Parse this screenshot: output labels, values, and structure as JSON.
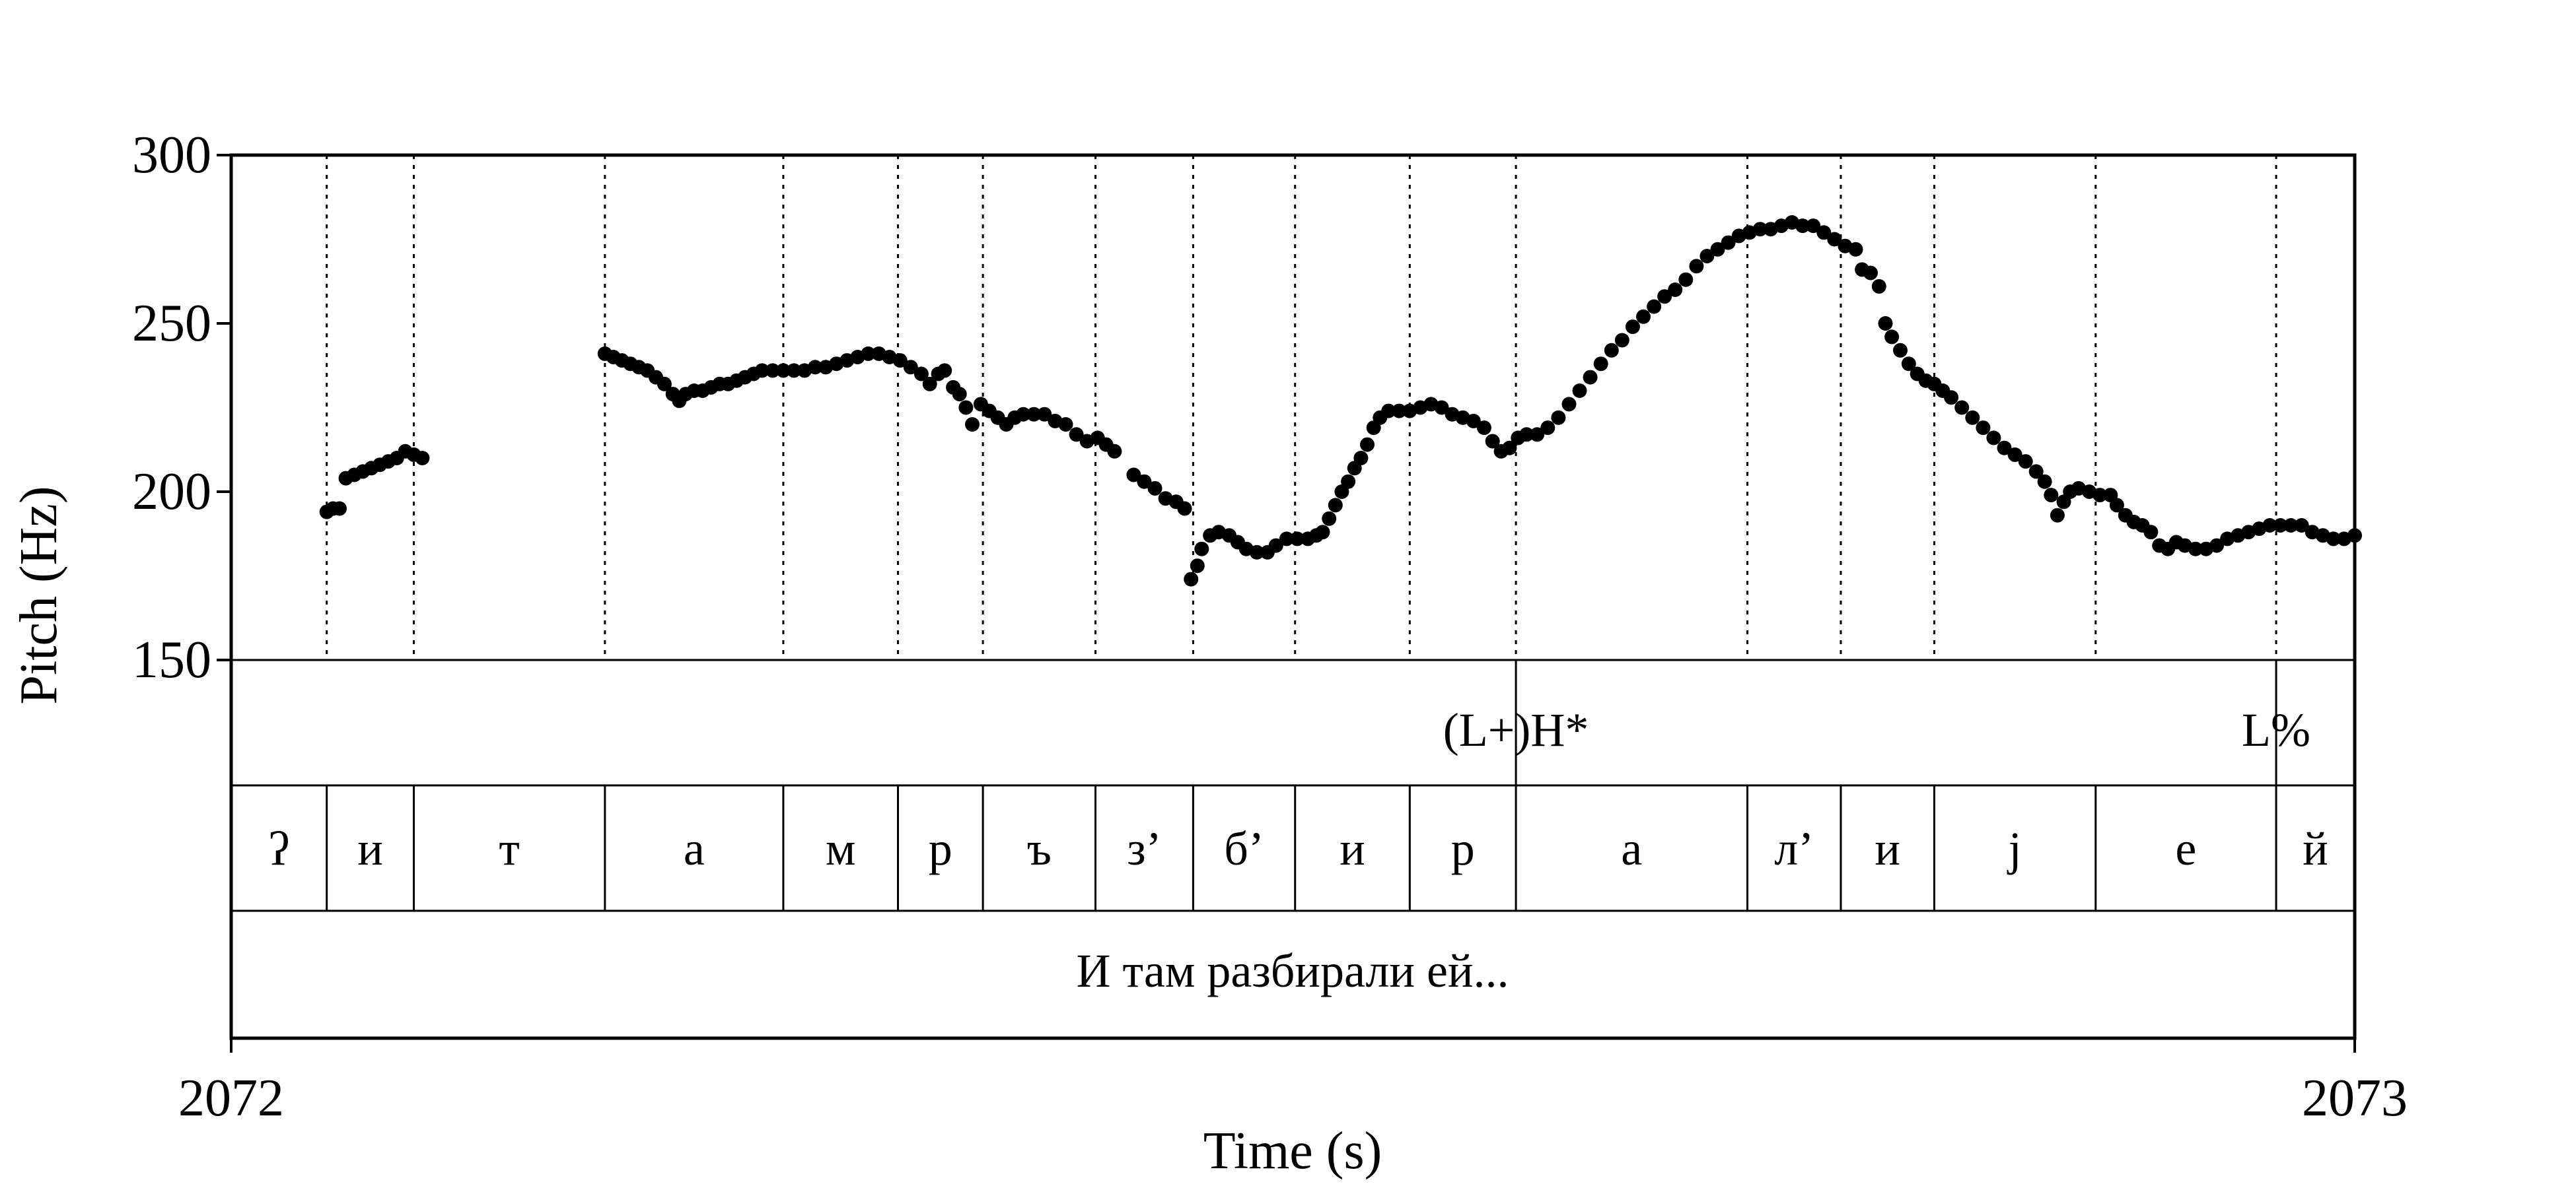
{
  "chart_data": {
    "type": "scatter",
    "title": "",
    "xlabel": "Time (s)",
    "ylabel": "Pitch (Hz)",
    "xlim": [
      2072,
      2073
    ],
    "ylim": [
      150,
      300
    ],
    "x_ticks": [
      "2072",
      "2073"
    ],
    "y_ticks": [
      "150",
      "200",
      "250",
      "300"
    ],
    "tone_tier": [
      {
        "label": "(L+)H*",
        "time": 2072.605
      },
      {
        "label": "L%",
        "time": 2072.963
      }
    ],
    "segment_tier": {
      "boundaries": [
        2072.0,
        2072.045,
        2072.086,
        2072.176,
        2072.26,
        2072.314,
        2072.354,
        2072.407,
        2072.453,
        2072.501,
        2072.555,
        2072.605,
        2072.714,
        2072.758,
        2072.802,
        2072.878,
        2072.963,
        2073.0
      ],
      "labels": [
        "ʔ",
        "и",
        "т",
        "а",
        "м",
        "р",
        "ъ",
        "з’",
        "б’",
        "и",
        "р",
        "а",
        "л’",
        "и",
        "j",
        "е",
        "й"
      ]
    },
    "phrase_tier": {
      "label": "И там разбирали ей..."
    },
    "pitch_segments": [
      [
        [
          2072.045,
          194
        ],
        [
          2072.048,
          195
        ],
        [
          2072.051,
          195
        ],
        [
          2072.054,
          204
        ],
        [
          2072.058,
          205
        ],
        [
          2072.062,
          206
        ],
        [
          2072.066,
          207
        ],
        [
          2072.07,
          208
        ],
        [
          2072.074,
          209
        ],
        [
          2072.078,
          210
        ],
        [
          2072.082,
          212
        ],
        [
          2072.086,
          211
        ],
        [
          2072.09,
          210
        ]
      ],
      [
        [
          2072.176,
          241
        ],
        [
          2072.18,
          240
        ],
        [
          2072.184,
          239
        ],
        [
          2072.188,
          238
        ],
        [
          2072.192,
          237
        ],
        [
          2072.196,
          236
        ],
        [
          2072.2,
          234
        ],
        [
          2072.204,
          232
        ],
        [
          2072.208,
          229
        ],
        [
          2072.211,
          227
        ],
        [
          2072.214,
          229
        ],
        [
          2072.218,
          230
        ],
        [
          2072.222,
          230
        ],
        [
          2072.226,
          231
        ],
        [
          2072.23,
          232
        ],
        [
          2072.234,
          232
        ],
        [
          2072.238,
          233
        ],
        [
          2072.242,
          234
        ],
        [
          2072.246,
          235
        ],
        [
          2072.25,
          236
        ],
        [
          2072.255,
          236
        ],
        [
          2072.26,
          236
        ],
        [
          2072.265,
          236
        ],
        [
          2072.27,
          236
        ],
        [
          2072.275,
          237
        ],
        [
          2072.28,
          237
        ],
        [
          2072.285,
          238
        ],
        [
          2072.29,
          239
        ],
        [
          2072.295,
          240
        ],
        [
          2072.3,
          241
        ],
        [
          2072.305,
          241
        ],
        [
          2072.31,
          240
        ],
        [
          2072.315,
          239
        ],
        [
          2072.32,
          237
        ],
        [
          2072.325,
          235
        ],
        [
          2072.329,
          232
        ],
        [
          2072.333,
          235
        ],
        [
          2072.336,
          236
        ],
        [
          2072.34,
          231
        ],
        [
          2072.343,
          229
        ],
        [
          2072.346,
          225
        ],
        [
          2072.349,
          220
        ],
        [
          2072.353,
          226
        ],
        [
          2072.357,
          224
        ],
        [
          2072.361,
          222
        ],
        [
          2072.365,
          220
        ],
        [
          2072.369,
          222
        ],
        [
          2072.373,
          223
        ],
        [
          2072.378,
          223
        ],
        [
          2072.383,
          223
        ],
        [
          2072.388,
          221
        ],
        [
          2072.393,
          220
        ],
        [
          2072.398,
          217
        ],
        [
          2072.403,
          215
        ],
        [
          2072.408,
          216
        ],
        [
          2072.412,
          214
        ],
        [
          2072.416,
          212
        ]
      ],
      [
        [
          2072.425,
          205
        ],
        [
          2072.43,
          203
        ],
        [
          2072.435,
          201
        ],
        [
          2072.44,
          198
        ],
        [
          2072.445,
          197
        ],
        [
          2072.449,
          195
        ]
      ],
      [
        [
          2072.452,
          174
        ],
        [
          2072.455,
          178
        ],
        [
          2072.457,
          183
        ],
        [
          2072.461,
          187
        ],
        [
          2072.465,
          188
        ],
        [
          2072.47,
          187
        ],
        [
          2072.474,
          185
        ],
        [
          2072.478,
          183
        ],
        [
          2072.483,
          182
        ],
        [
          2072.488,
          182
        ],
        [
          2072.492,
          184
        ],
        [
          2072.497,
          186
        ],
        [
          2072.502,
          186
        ],
        [
          2072.507,
          186
        ],
        [
          2072.511,
          187
        ],
        [
          2072.514,
          188
        ],
        [
          2072.517,
          192
        ],
        [
          2072.52,
          196
        ],
        [
          2072.523,
          200
        ],
        [
          2072.526,
          203
        ],
        [
          2072.529,
          207
        ],
        [
          2072.532,
          210
        ],
        [
          2072.535,
          214
        ],
        [
          2072.538,
          219
        ],
        [
          2072.541,
          222
        ],
        [
          2072.545,
          224
        ],
        [
          2072.55,
          224
        ],
        [
          2072.555,
          224
        ],
        [
          2072.56,
          225
        ],
        [
          2072.565,
          226
        ],
        [
          2072.57,
          225
        ],
        [
          2072.575,
          223
        ],
        [
          2072.58,
          222
        ],
        [
          2072.585,
          221
        ],
        [
          2072.59,
          219
        ],
        [
          2072.594,
          215
        ],
        [
          2072.598,
          212
        ],
        [
          2072.602,
          213
        ],
        [
          2072.606,
          216
        ],
        [
          2072.61,
          217
        ],
        [
          2072.615,
          217
        ],
        [
          2072.62,
          219
        ],
        [
          2072.625,
          222
        ],
        [
          2072.63,
          226
        ],
        [
          2072.635,
          230
        ],
        [
          2072.64,
          234
        ],
        [
          2072.645,
          238
        ],
        [
          2072.65,
          242
        ],
        [
          2072.655,
          245
        ],
        [
          2072.66,
          249
        ],
        [
          2072.665,
          252
        ],
        [
          2072.67,
          255
        ],
        [
          2072.675,
          258
        ],
        [
          2072.68,
          260
        ],
        [
          2072.685,
          263
        ],
        [
          2072.69,
          267
        ],
        [
          2072.695,
          270
        ],
        [
          2072.7,
          272
        ],
        [
          2072.705,
          274
        ],
        [
          2072.71,
          276
        ],
        [
          2072.715,
          277
        ],
        [
          2072.72,
          278
        ],
        [
          2072.725,
          278
        ],
        [
          2072.73,
          279
        ],
        [
          2072.735,
          280
        ],
        [
          2072.74,
          279
        ],
        [
          2072.745,
          279
        ],
        [
          2072.75,
          277
        ],
        [
          2072.755,
          275
        ],
        [
          2072.76,
          273
        ],
        [
          2072.765,
          272
        ],
        [
          2072.768,
          266
        ],
        [
          2072.772,
          265
        ],
        [
          2072.776,
          261
        ],
        [
          2072.779,
          250
        ],
        [
          2072.782,
          246
        ],
        [
          2072.786,
          242
        ],
        [
          2072.79,
          238
        ],
        [
          2072.794,
          235
        ],
        [
          2072.798,
          233
        ],
        [
          2072.802,
          232
        ],
        [
          2072.806,
          230
        ],
        [
          2072.81,
          228
        ],
        [
          2072.815,
          225
        ],
        [
          2072.82,
          222
        ],
        [
          2072.825,
          219
        ],
        [
          2072.83,
          216
        ],
        [
          2072.835,
          213
        ],
        [
          2072.84,
          211
        ],
        [
          2072.845,
          209
        ],
        [
          2072.85,
          206
        ],
        [
          2072.854,
          203
        ],
        [
          2072.857,
          199
        ],
        [
          2072.86,
          193
        ],
        [
          2072.863,
          197
        ],
        [
          2072.866,
          200
        ],
        [
          2072.87,
          201
        ],
        [
          2072.875,
          200
        ],
        [
          2072.88,
          199
        ],
        [
          2072.885,
          199
        ],
        [
          2072.888,
          196
        ],
        [
          2072.892,
          193
        ],
        [
          2072.896,
          191
        ],
        [
          2072.9,
          190
        ],
        [
          2072.904,
          188
        ],
        [
          2072.908,
          184
        ],
        [
          2072.912,
          183
        ],
        [
          2072.916,
          185
        ],
        [
          2072.92,
          184
        ],
        [
          2072.925,
          183
        ],
        [
          2072.93,
          183
        ],
        [
          2072.935,
          184
        ],
        [
          2072.94,
          186
        ],
        [
          2072.945,
          187
        ],
        [
          2072.95,
          188
        ],
        [
          2072.955,
          189
        ],
        [
          2072.96,
          190
        ],
        [
          2072.965,
          190
        ],
        [
          2072.97,
          190
        ],
        [
          2072.975,
          190
        ],
        [
          2072.98,
          188
        ],
        [
          2072.985,
          187
        ],
        [
          2072.99,
          186
        ],
        [
          2072.995,
          186
        ],
        [
          2073.0,
          187
        ],
        [
          2073.005,
          187
        ],
        [
          2073.01,
          187
        ],
        [
          2073.015,
          187
        ],
        [
          2073.02,
          186
        ],
        [
          2073.025,
          185
        ],
        [
          2073.03,
          184
        ]
      ]
    ]
  }
}
